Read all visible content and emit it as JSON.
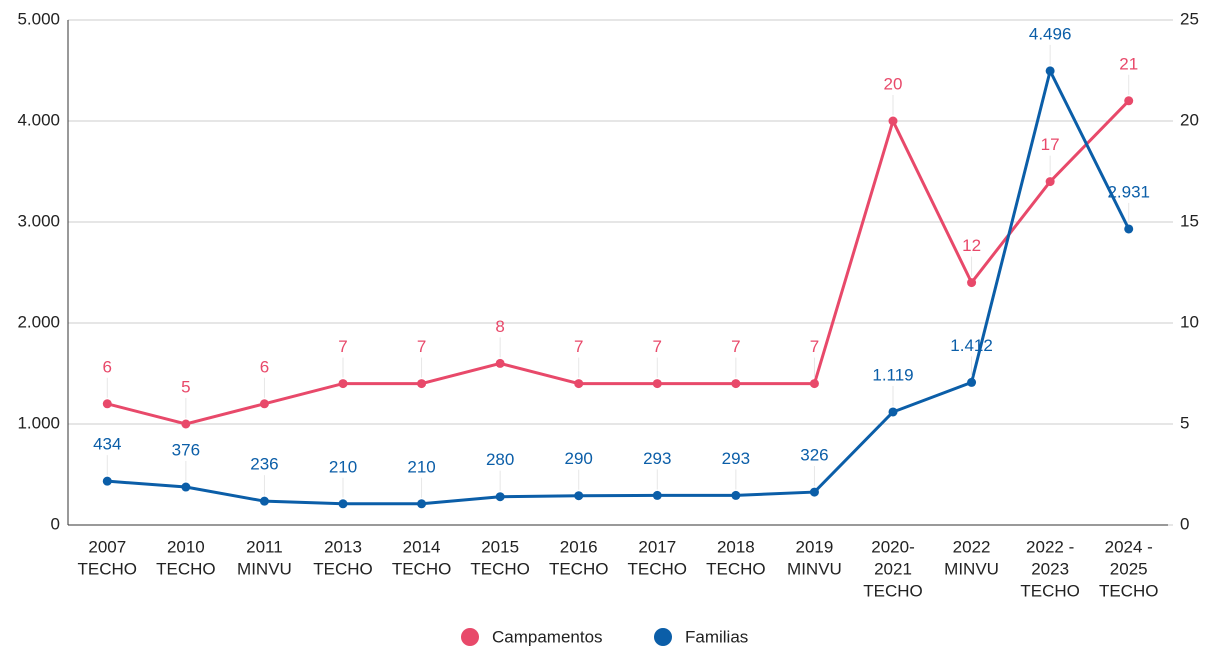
{
  "chart_data": {
    "type": "line",
    "categories": [
      [
        "2007",
        "TECHO"
      ],
      [
        "2010",
        "TECHO"
      ],
      [
        "2011",
        "MINVU"
      ],
      [
        "2013",
        "TECHO"
      ],
      [
        "2014",
        "TECHO"
      ],
      [
        "2015",
        "TECHO"
      ],
      [
        "2016",
        "TECHO"
      ],
      [
        "2017",
        "TECHO"
      ],
      [
        "2018",
        "TECHO"
      ],
      [
        "2019",
        "MINVU"
      ],
      [
        "2020-",
        "2021",
        "TECHO"
      ],
      [
        "2022",
        "MINVU"
      ],
      [
        "2022 -",
        "2023",
        "TECHO"
      ],
      [
        "2024 -",
        "2025",
        "TECHO"
      ]
    ],
    "ylim": [
      0,
      5000
    ],
    "yticks": [
      0,
      {
        "value": 1000,
        "label": "1.000"
      },
      {
        "value": 2000,
        "label": "2.000"
      },
      {
        "value": 3000,
        "label": "3.000"
      },
      {
        "value": 4000,
        "label": "4.000"
      },
      {
        "value": 5000,
        "label": "5.000"
      }
    ],
    "y2lim": [
      0,
      25
    ],
    "y2ticks": [
      0,
      5,
      10,
      15,
      20,
      25
    ],
    "grid": true,
    "legend": "bottom",
    "series": [
      {
        "name": "Campamentos",
        "color": "#e8496a",
        "axis": "y2",
        "values": [
          6,
          5,
          6,
          7,
          7,
          8,
          7,
          7,
          7,
          7,
          20,
          12,
          17,
          21
        ]
      },
      {
        "name": "Familias",
        "color": "#0b5ea8",
        "values": [
          434,
          376,
          236,
          210,
          210,
          280,
          290,
          293,
          293,
          326,
          1119,
          1412,
          4496,
          2931
        ],
        "value_labels": [
          "434",
          "376",
          "236",
          "210",
          "210",
          "280",
          "290",
          "293",
          "293",
          "326",
          "1.119",
          "1.412",
          "4.496",
          "2.931"
        ]
      }
    ]
  }
}
